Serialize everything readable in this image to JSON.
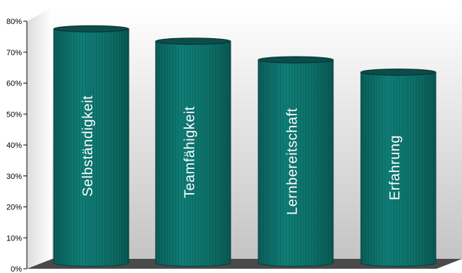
{
  "chart_data": {
    "type": "bar",
    "style": "3d-cylinder",
    "categories": [
      "Selbständigkeit",
      "Teamfähigkeit",
      "Lernbereitschaft",
      "Erfahrung"
    ],
    "values": [
      78,
      74,
      68,
      64
    ],
    "ylim": [
      0,
      80
    ],
    "yticks": [
      "0%",
      "10%",
      "20%",
      "30%",
      "40%",
      "50%",
      "60%",
      "70%",
      "80%"
    ],
    "title": "",
    "xlabel": "",
    "ylabel": "",
    "grid": false,
    "legend": "none",
    "bar_color": "#0e7a73",
    "bar_top_color": "#0b4d4a"
  }
}
